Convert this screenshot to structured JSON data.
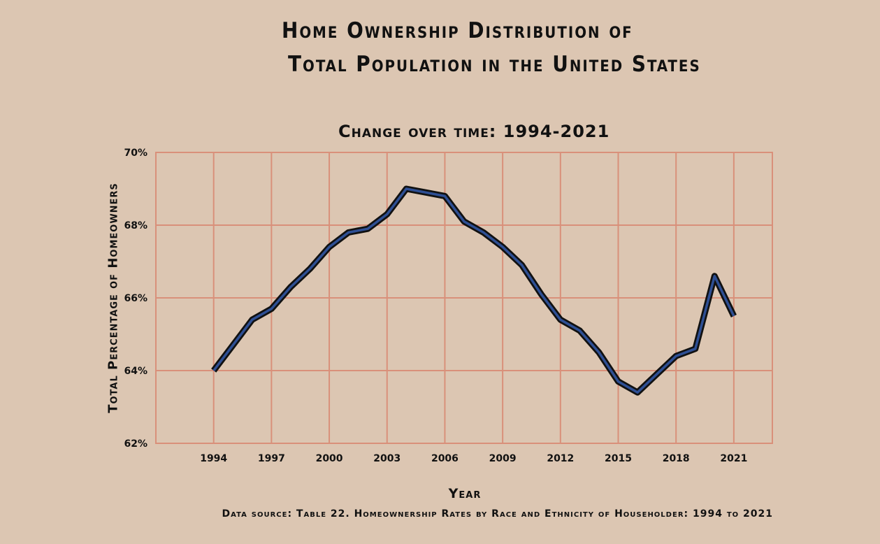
{
  "chart_data": {
    "type": "line",
    "title": [
      "Home Ownership Distribution of",
      "Total Population in the United States"
    ],
    "subtitle": "Change over time: 1994-2021",
    "xlabel": "Year",
    "ylabel": "Total Percentage of Homeowners",
    "source": "Data source: Table 22. Homeownership Rates by Race and Ethnicity of Householder: 1994 to 2021",
    "x": [
      1994,
      1995,
      1996,
      1997,
      1998,
      1999,
      2000,
      2001,
      2002,
      2003,
      2004,
      2005,
      2006,
      2007,
      2008,
      2009,
      2010,
      2011,
      2012,
      2013,
      2014,
      2015,
      2016,
      2017,
      2018,
      2019,
      2020,
      2021
    ],
    "series": [
      {
        "values": [
          64.0,
          64.7,
          65.4,
          65.7,
          66.3,
          66.8,
          67.4,
          67.8,
          67.9,
          68.3,
          69.0,
          68.9,
          68.8,
          68.1,
          67.8,
          67.4,
          66.9,
          66.1,
          65.4,
          65.1,
          64.5,
          63.7,
          63.4,
          63.9,
          64.4,
          64.6,
          66.6,
          65.5
        ]
      }
    ],
    "xticks": [
      "1994",
      "1997",
      "2000",
      "2003",
      "2006",
      "2009",
      "2012",
      "2015",
      "2018",
      "2021"
    ],
    "yticks": [
      "62%",
      "64%",
      "66%",
      "68%",
      "70%"
    ],
    "ylim": [
      62,
      70
    ],
    "xlim": [
      1991,
      2023
    ],
    "grid": true,
    "colors": {
      "background": "#dcc6b2",
      "grid": "#d9907a",
      "line": "#2e4f94",
      "line_outline": "#111111"
    }
  }
}
